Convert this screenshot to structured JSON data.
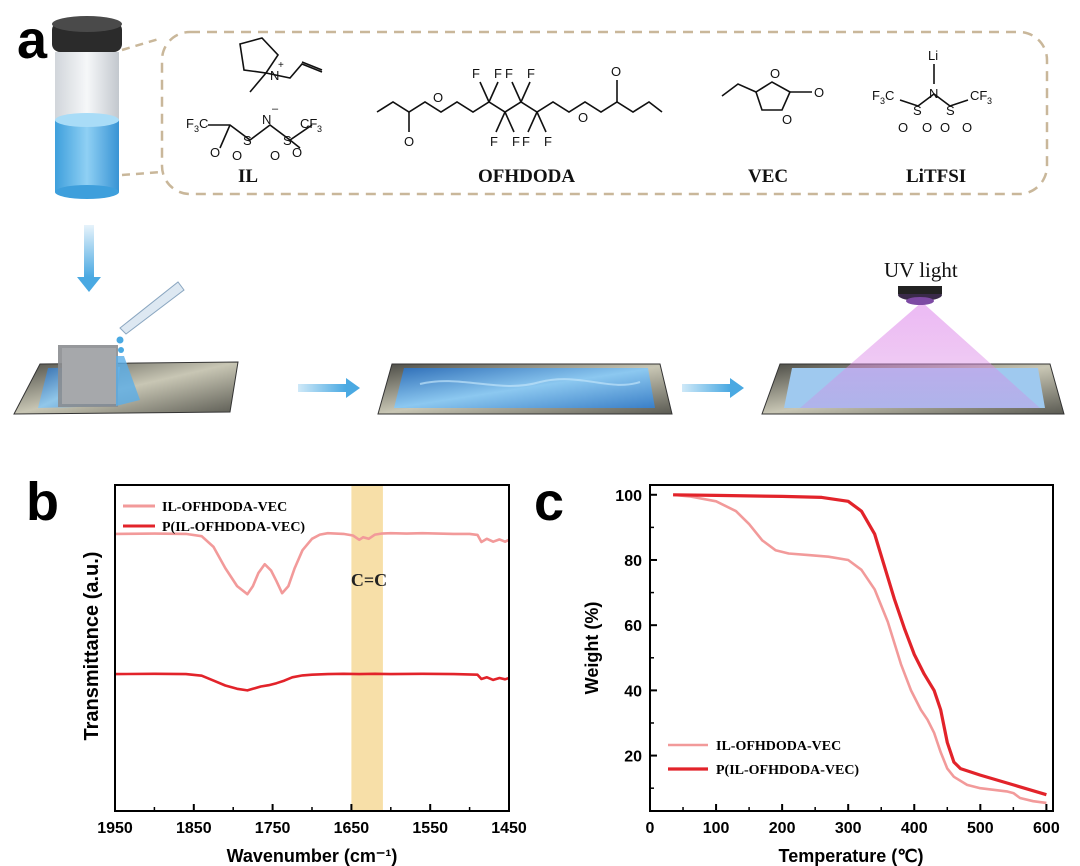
{
  "panels": {
    "a": "a",
    "b": "b",
    "c": "c"
  },
  "schematic": {
    "molecules": [
      "IL",
      "OFHDODA",
      "VEC",
      "LiTFSI"
    ],
    "uv_label": "UV light",
    "colors": {
      "liquid": "#4fb3e8",
      "arrow": "#5ab4e6",
      "uv": "#d77fe0",
      "dashed_border": "#c9b79a"
    }
  },
  "chart_data": [
    {
      "id": "b",
      "type": "line",
      "title": "",
      "xlabel": "Wavenumber (cm⁻¹)",
      "ylabel": "Transmittance (a.u.)",
      "xlim": [
        1950,
        1450
      ],
      "x_reversed": true,
      "x_ticks": [
        "1950",
        "1850",
        "1750",
        "1650",
        "1550",
        "1450"
      ],
      "y_ticks_shown": false,
      "highlight_band": {
        "from": 1650,
        "to": 1610,
        "label": "C=C",
        "color": "#f7dfa8"
      },
      "legend_position": "top-left",
      "series": [
        {
          "name": "IL-OFHDODA-VEC",
          "color": "#f29a9a",
          "x": [
            1950,
            1900,
            1860,
            1840,
            1825,
            1810,
            1795,
            1782,
            1775,
            1768,
            1760,
            1752,
            1745,
            1738,
            1730,
            1722,
            1712,
            1700,
            1690,
            1680,
            1660,
            1648,
            1640,
            1635,
            1628,
            1620,
            1612,
            1600,
            1580,
            1560,
            1540,
            1520,
            1500,
            1490,
            1485,
            1478,
            1470,
            1462,
            1455,
            1450
          ],
          "y": [
            0.85,
            0.851,
            0.85,
            0.843,
            0.81,
            0.745,
            0.69,
            0.665,
            0.69,
            0.73,
            0.757,
            0.738,
            0.705,
            0.668,
            0.69,
            0.745,
            0.8,
            0.835,
            0.848,
            0.852,
            0.85,
            0.845,
            0.832,
            0.84,
            0.835,
            0.848,
            0.851,
            0.852,
            0.851,
            0.852,
            0.851,
            0.85,
            0.85,
            0.847,
            0.825,
            0.835,
            0.826,
            0.833,
            0.826,
            0.832
          ]
        },
        {
          "name": "P(IL-OFHDODA-VEC)",
          "color": "#e2232a",
          "x": [
            1950,
            1900,
            1860,
            1840,
            1825,
            1810,
            1795,
            1782,
            1775,
            1765,
            1755,
            1745,
            1735,
            1725,
            1712,
            1700,
            1680,
            1660,
            1640,
            1620,
            1600,
            1560,
            1520,
            1490,
            1485,
            1478,
            1470,
            1462,
            1455,
            1450
          ],
          "y": [
            0.42,
            0.421,
            0.42,
            0.415,
            0.4,
            0.385,
            0.375,
            0.37,
            0.375,
            0.382,
            0.386,
            0.392,
            0.4,
            0.41,
            0.416,
            0.418,
            0.42,
            0.421,
            0.42,
            0.421,
            0.42,
            0.421,
            0.42,
            0.418,
            0.405,
            0.41,
            0.402,
            0.408,
            0.404,
            0.408
          ]
        }
      ]
    },
    {
      "id": "c",
      "type": "line",
      "title": "",
      "xlabel": "Temperature (℃)",
      "ylabel": "Weight (%)",
      "xlim": [
        0,
        610
      ],
      "ylim": [
        3,
        103
      ],
      "x_ticks": [
        0,
        100,
        200,
        300,
        400,
        500,
        600
      ],
      "y_ticks": [
        20,
        40,
        60,
        80,
        100
      ],
      "legend_position": "bottom-left",
      "series": [
        {
          "name": "IL-OFHDODA-VEC",
          "color": "#f29a9a",
          "x": [
            35,
            60,
            100,
            130,
            150,
            170,
            190,
            210,
            240,
            270,
            300,
            320,
            340,
            360,
            380,
            395,
            410,
            420,
            430,
            440,
            450,
            460,
            480,
            500,
            520,
            540,
            550,
            560,
            580,
            600
          ],
          "y": [
            100,
            99.5,
            98,
            95,
            91,
            86,
            83,
            82,
            81.5,
            81,
            80,
            77,
            71,
            61,
            48,
            40,
            34,
            31,
            27,
            21,
            16,
            13.5,
            11,
            10,
            9.5,
            9,
            8.5,
            7,
            6,
            5.5
          ]
        },
        {
          "name": "P(IL-OFHDODA-VEC)",
          "color": "#e2232a",
          "x": [
            35,
            100,
            200,
            260,
            300,
            320,
            340,
            355,
            370,
            385,
            400,
            415,
            430,
            440,
            450,
            460,
            470,
            500,
            550,
            600
          ],
          "y": [
            100,
            99.8,
            99.5,
            99.2,
            98,
            95,
            88,
            78,
            68,
            59,
            51,
            45,
            40,
            34,
            24,
            18,
            16,
            14,
            11,
            8
          ]
        }
      ]
    }
  ]
}
